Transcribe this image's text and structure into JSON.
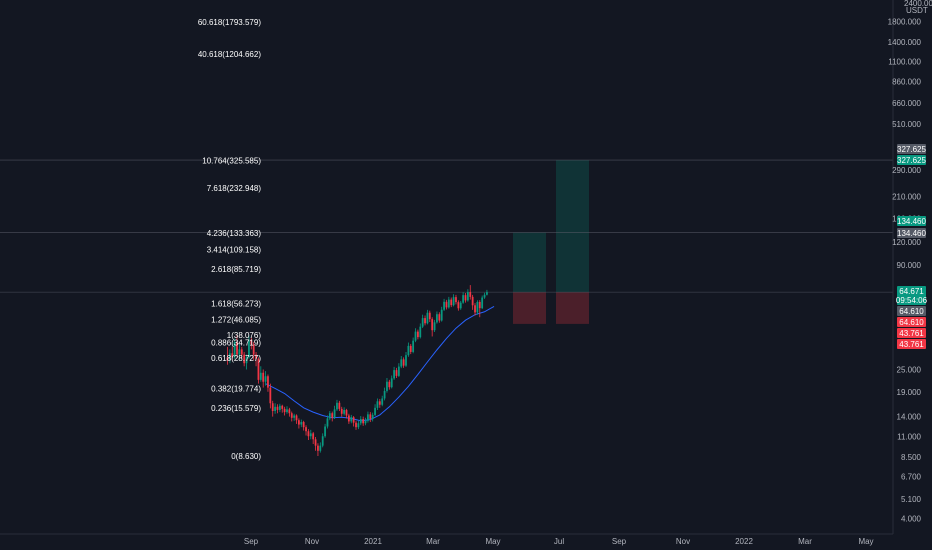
{
  "chart_data": {
    "type": "candlestick",
    "currency": "USDT",
    "y_scale": "log",
    "ylim": [
      3.3,
      2600
    ],
    "y_ticks": [
      "1800.000",
      "1400.000",
      "1100.000",
      "860.000",
      "660.000",
      "510.000",
      "290.000",
      "210.000",
      "160.000",
      "120.000",
      "90.000",
      "25.000",
      "19.000",
      "14.000",
      "11.000",
      "8.500",
      "6.700",
      "5.100",
      "4.000"
    ],
    "x_ticks": [
      "Sep",
      "Nov",
      "2021",
      "Mar",
      "May",
      "Jul",
      "Sep",
      "Nov",
      "2022",
      "Mar",
      "May"
    ],
    "fib_levels": [
      {
        "label": "60.618(1793.579)",
        "value": 1793.579
      },
      {
        "label": "40.618(1204.662)",
        "value": 1204.662
      },
      {
        "label": "10.764(325.585)",
        "value": 325.585
      },
      {
        "label": "7.618(232.948)",
        "value": 232.948
      },
      {
        "label": "4.236(133.363)",
        "value": 133.363
      },
      {
        "label": "3.414(109.158)",
        "value": 109.158
      },
      {
        "label": "2.618(85.719)",
        "value": 85.719
      },
      {
        "label": "1.618(56.273)",
        "value": 56.273
      },
      {
        "label": "1.272(46.085)",
        "value": 46.085
      },
      {
        "label": "1(38.076)",
        "value": 38.076
      },
      {
        "label": "0.886(34.719)",
        "value": 34.719
      },
      {
        "label": "0.618(28.727)",
        "value": 28.727
      },
      {
        "label": "0.382(19.774)",
        "value": 19.774
      },
      {
        "label": "0.236(15.579)",
        "value": 15.579
      },
      {
        "label": "0(8.630)",
        "value": 8.63
      }
    ],
    "price_tags": [
      {
        "text": "327.625",
        "value": 327.625,
        "color": "#555a66"
      },
      {
        "text": "327.625",
        "value": 327.625,
        "color": "#089981"
      },
      {
        "text": "134.460",
        "value": 134.46,
        "color": "#089981"
      },
      {
        "text": "134.460",
        "value": 134.46,
        "color": "#555a66"
      },
      {
        "text": "64.671",
        "sub": "09:54:06",
        "value": 64.671,
        "color": "#089981"
      },
      {
        "text": "64.610",
        "value": 64.61,
        "color": "#555a66"
      },
      {
        "text": "64.610",
        "value": 64.61,
        "color": "#f23645"
      },
      {
        "text": "43.761",
        "value": 43.761,
        "color": "#f23645"
      },
      {
        "text": "43.761",
        "value": 43.761,
        "color": "#f23645"
      }
    ],
    "positions": [
      {
        "entry": 64.61,
        "target": 134.46,
        "stop": 43.761
      },
      {
        "entry": 64.61,
        "target": 327.625,
        "stop": 43.761
      }
    ],
    "colors": {
      "up": "#089981",
      "down": "#f23645",
      "ma": "#2962ff",
      "background": "#131722"
    },
    "candles": [
      [
        29.0,
        28.0,
        33.0,
        26.5
      ],
      [
        28.0,
        30.5,
        32.0,
        27.0
      ],
      [
        30.5,
        29.0,
        33.0,
        28.0
      ],
      [
        29.0,
        35.0,
        36.5,
        28.5
      ],
      [
        35.0,
        30.0,
        38.0,
        29.0
      ],
      [
        30.0,
        32.0,
        34.0,
        28.0
      ],
      [
        32.0,
        30.0,
        33.0,
        28.5
      ],
      [
        30.0,
        27.0,
        31.0,
        26.0
      ],
      [
        27.0,
        29.0,
        30.0,
        25.0
      ],
      [
        29.0,
        36.0,
        38.0,
        28.5
      ],
      [
        36.0,
        34.0,
        37.0,
        32.0
      ],
      [
        34.0,
        30.0,
        35.0,
        28.0
      ],
      [
        30.0,
        28.5,
        31.0,
        26.0
      ],
      [
        28.5,
        22.0,
        29.0,
        21.0
      ],
      [
        22.0,
        24.0,
        26.0,
        21.5
      ],
      [
        24.0,
        21.5,
        25.0,
        20.0
      ],
      [
        21.5,
        23.0,
        24.5,
        20.5
      ],
      [
        23.0,
        20.0,
        23.5,
        19.0
      ],
      [
        20.0,
        16.5,
        21.0,
        15.5
      ],
      [
        16.5,
        15.0,
        17.0,
        14.0
      ],
      [
        15.0,
        15.8,
        16.5,
        14.5
      ],
      [
        15.8,
        15.2,
        16.3,
        14.6
      ],
      [
        15.2,
        16.0,
        16.4,
        14.8
      ],
      [
        16.0,
        15.4,
        16.2,
        14.7
      ],
      [
        15.4,
        14.8,
        15.8,
        14.2
      ],
      [
        14.8,
        15.3,
        15.9,
        14.5
      ],
      [
        15.3,
        14.6,
        15.6,
        14.0
      ],
      [
        14.6,
        13.8,
        14.9,
        13.2
      ],
      [
        13.8,
        14.2,
        14.5,
        13.3
      ],
      [
        14.2,
        13.4,
        14.4,
        12.8
      ],
      [
        13.4,
        12.7,
        13.7,
        12.1
      ],
      [
        12.7,
        13.1,
        13.5,
        12.3
      ],
      [
        13.1,
        12.3,
        13.3,
        11.8
      ],
      [
        12.3,
        11.7,
        12.6,
        11.1
      ],
      [
        11.7,
        11.0,
        12.0,
        10.5
      ],
      [
        11.0,
        11.4,
        11.9,
        10.6
      ],
      [
        11.4,
        10.6,
        11.6,
        10.0
      ],
      [
        10.6,
        9.8,
        10.9,
        9.2
      ],
      [
        9.8,
        9.2,
        10.1,
        8.63
      ],
      [
        9.2,
        9.8,
        10.2,
        9.0
      ],
      [
        9.8,
        11.0,
        11.4,
        9.6
      ],
      [
        11.0,
        12.4,
        12.8,
        10.8
      ],
      [
        12.4,
        13.7,
        14.2,
        12.1
      ],
      [
        13.7,
        14.6,
        15.0,
        13.4
      ],
      [
        14.6,
        13.8,
        14.9,
        13.2
      ],
      [
        13.8,
        15.3,
        16.0,
        13.6
      ],
      [
        15.3,
        16.6,
        17.2,
        15.0
      ],
      [
        16.6,
        15.4,
        17.0,
        15.0
      ],
      [
        15.4,
        14.5,
        15.8,
        14.0
      ],
      [
        14.5,
        15.2,
        15.7,
        14.2
      ],
      [
        15.2,
        14.2,
        15.4,
        13.7
      ],
      [
        14.2,
        13.2,
        14.5,
        12.8
      ],
      [
        13.2,
        13.9,
        14.3,
        12.9
      ],
      [
        13.9,
        13.0,
        14.1,
        12.4
      ],
      [
        13.0,
        12.3,
        13.3,
        11.9
      ],
      [
        12.3,
        12.9,
        13.3,
        12.0
      ],
      [
        12.9,
        13.6,
        14.1,
        12.6
      ],
      [
        13.6,
        12.9,
        14.0,
        12.5
      ],
      [
        12.9,
        13.3,
        13.8,
        12.6
      ],
      [
        13.3,
        14.4,
        14.9,
        13.0
      ],
      [
        14.4,
        13.6,
        14.8,
        13.1
      ],
      [
        13.6,
        14.3,
        14.7,
        13.2
      ],
      [
        14.3,
        15.6,
        16.3,
        14.1
      ],
      [
        15.6,
        16.9,
        17.5,
        15.2
      ],
      [
        16.9,
        16.2,
        17.4,
        15.6
      ],
      [
        16.2,
        17.5,
        18.1,
        15.9
      ],
      [
        17.5,
        19.2,
        20.0,
        17.1
      ],
      [
        19.2,
        21.5,
        22.5,
        18.8
      ],
      [
        21.5,
        20.1,
        22.0,
        19.5
      ],
      [
        20.1,
        22.4,
        23.2,
        19.8
      ],
      [
        22.4,
        24.8,
        25.8,
        22.0
      ],
      [
        24.8,
        23.1,
        25.5,
        22.5
      ],
      [
        23.1,
        25.9,
        27.0,
        22.8
      ],
      [
        25.9,
        28.3,
        29.5,
        25.4
      ],
      [
        28.3,
        26.2,
        29.0,
        25.5
      ],
      [
        26.2,
        29.8,
        31.0,
        25.8
      ],
      [
        29.8,
        33.4,
        34.8,
        29.2
      ],
      [
        33.4,
        31.0,
        34.2,
        30.2
      ],
      [
        31.0,
        35.6,
        37.0,
        30.5
      ],
      [
        35.6,
        39.8,
        41.5,
        35.0
      ],
      [
        39.8,
        37.2,
        40.8,
        36.2
      ],
      [
        37.2,
        42.3,
        44.0,
        36.6
      ],
      [
        42.3,
        47.0,
        49.0,
        41.6
      ],
      [
        47.0,
        44.1,
        48.5,
        43.0
      ],
      [
        44.1,
        50.2,
        52.0,
        43.5
      ],
      [
        50.2,
        46.4,
        51.5,
        44.8
      ],
      [
        46.4,
        40.5,
        47.5,
        37.5
      ],
      [
        40.5,
        44.6,
        46.0,
        39.6
      ],
      [
        44.6,
        49.3,
        51.0,
        43.9
      ],
      [
        49.3,
        45.6,
        50.5,
        44.4
      ],
      [
        45.6,
        52.1,
        54.0,
        45.0
      ],
      [
        52.1,
        57.4,
        59.5,
        51.3
      ],
      [
        57.4,
        53.6,
        58.8,
        52.2
      ],
      [
        53.6,
        59.0,
        61.0,
        52.8
      ],
      [
        59.0,
        55.1,
        60.5,
        53.8
      ],
      [
        55.1,
        60.8,
        63.0,
        54.3
      ],
      [
        60.8,
        57.2,
        62.5,
        55.6
      ],
      [
        57.2,
        53.0,
        58.5,
        51.5
      ],
      [
        53.0,
        56.8,
        58.0,
        52.0
      ],
      [
        56.8,
        62.3,
        64.5,
        56.0
      ],
      [
        62.3,
        58.4,
        64.0,
        56.8
      ],
      [
        58.4,
        64.7,
        67.0,
        57.5
      ],
      [
        64.7,
        61.0,
        70.5,
        59.0
      ],
      [
        61.0,
        55.0,
        62.5,
        52.0
      ],
      [
        55.0,
        50.4,
        56.5,
        48.5
      ],
      [
        50.4,
        57.3,
        58.5,
        49.0
      ],
      [
        57.3,
        53.1,
        58.6,
        47.5
      ],
      [
        53.1,
        60.5,
        62.0,
        52.5
      ],
      [
        60.5,
        62.6,
        64.2,
        59.5
      ],
      [
        62.6,
        64.671,
        66.5,
        62.0
      ]
    ],
    "ma": [
      [
        16,
        21.0
      ],
      [
        20,
        19.8
      ],
      [
        24,
        18.6
      ],
      [
        28,
        17.0
      ],
      [
        32,
        15.6
      ],
      [
        36,
        14.8
      ],
      [
        40,
        14.2
      ],
      [
        44,
        13.8
      ],
      [
        48,
        13.9
      ],
      [
        52,
        13.7
      ],
      [
        56,
        13.3
      ],
      [
        60,
        13.5
      ],
      [
        64,
        14.3
      ],
      [
        68,
        15.8
      ],
      [
        72,
        17.8
      ],
      [
        76,
        20.3
      ],
      [
        80,
        23.5
      ],
      [
        84,
        27.4
      ],
      [
        88,
        31.8
      ],
      [
        92,
        36.6
      ],
      [
        96,
        41.5
      ],
      [
        100,
        45.8
      ],
      [
        104,
        49.0
      ],
      [
        108,
        50.8
      ],
      [
        110,
        52.5
      ],
      [
        112,
        54.2
      ]
    ]
  }
}
